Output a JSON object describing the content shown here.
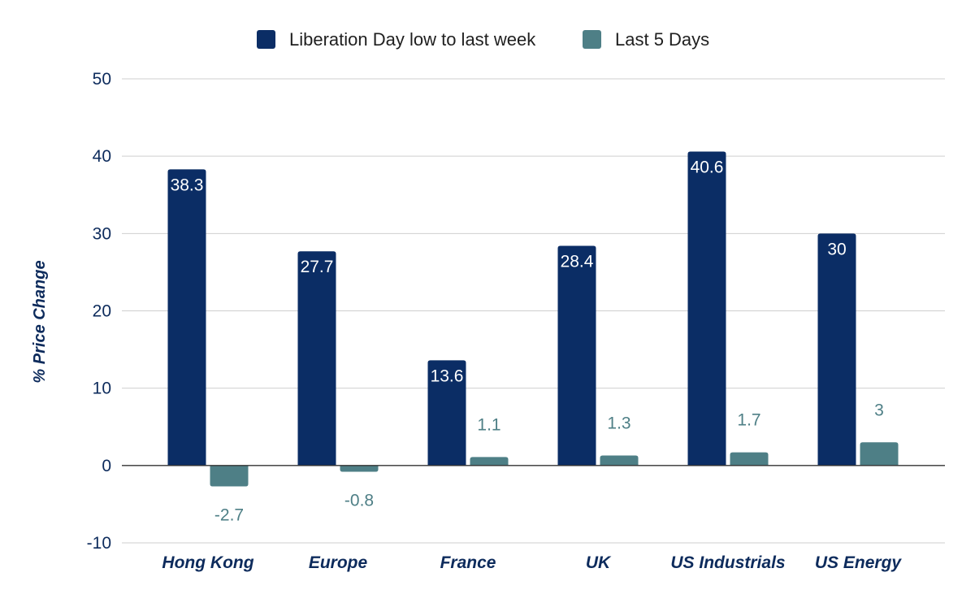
{
  "chart_data": {
    "type": "bar",
    "categories": [
      "Hong Kong",
      "Europe",
      "France",
      "UK",
      "US Industrials",
      "US Energy"
    ],
    "series": [
      {
        "name": "Liberation Day low to last week",
        "values": [
          38.3,
          27.7,
          13.6,
          28.4,
          40.6,
          30
        ],
        "color": "#0b2d65"
      },
      {
        "name": "Last 5 Days",
        "values": [
          -2.7,
          -0.8,
          1.1,
          1.3,
          1.7,
          3
        ],
        "color": "#4e7f86"
      }
    ],
    "title": "",
    "xlabel": "",
    "ylabel": "% Price Change",
    "ylim": [
      -10,
      50
    ],
    "yticks": [
      -10,
      0,
      10,
      20,
      30,
      40,
      50
    ],
    "legend": "top-center",
    "grid": true
  }
}
